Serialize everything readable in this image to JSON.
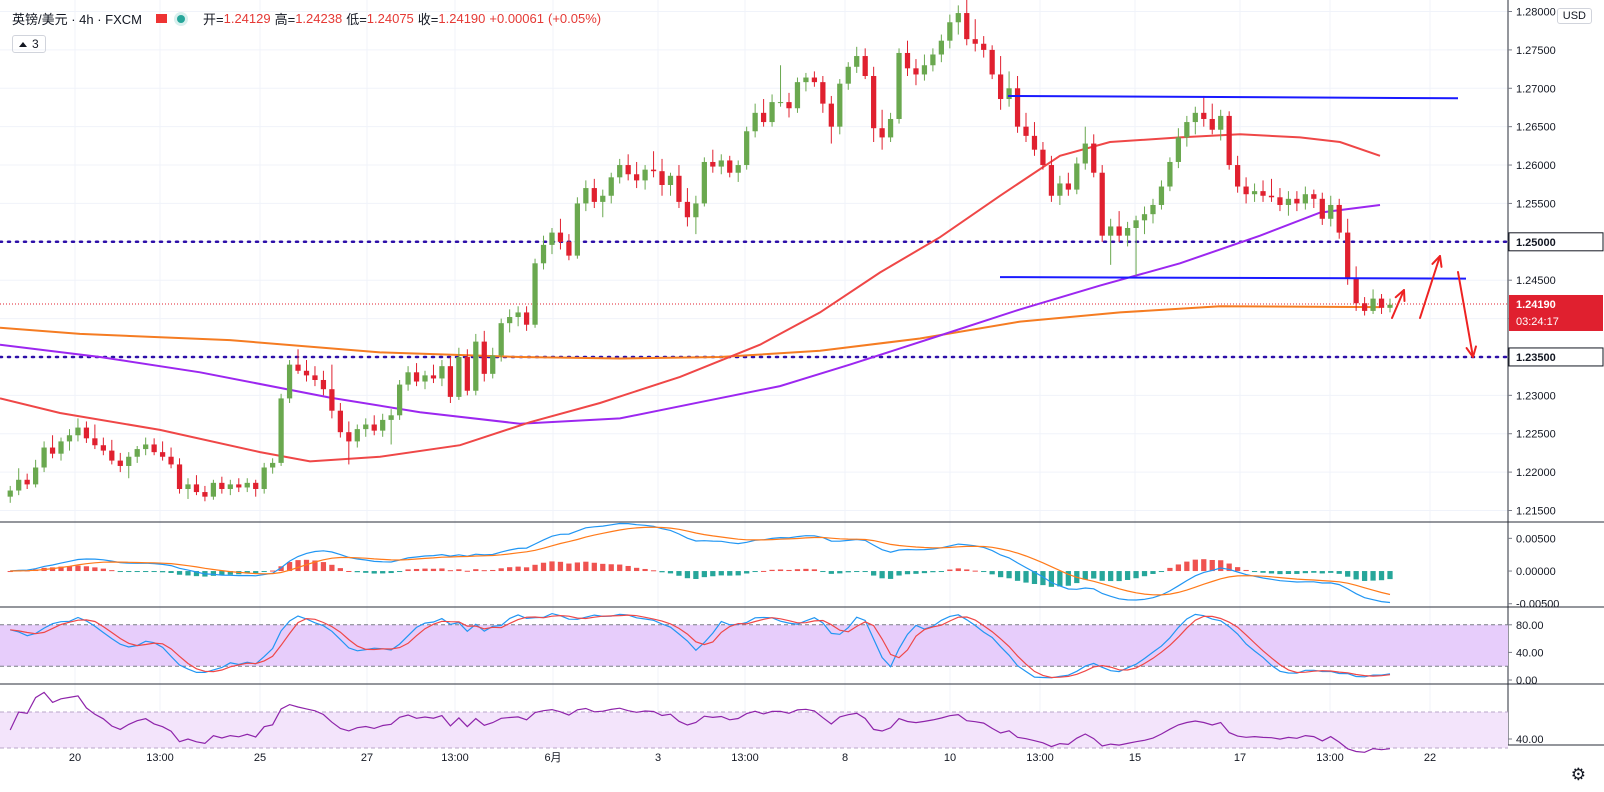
{
  "header": {
    "symbol": "英镑/美元 · 4h · FXCM",
    "open_label": "开=",
    "open_value": "1.24129",
    "high_label": "高=",
    "high_value": "1.24238",
    "low_label": "低=",
    "low_value": "1.24075",
    "close_label": "收=",
    "close_value": "1.24190",
    "change_value": "+0.00061",
    "change_pct": "(+0.05%)"
  },
  "indicator_badge": "3",
  "currency": "USD",
  "current_price_label": "1.24190",
  "countdown": "03:24:17",
  "colors": {
    "up": "#6aa84f",
    "down": "#e0202f",
    "ma_red": "#ef4747",
    "ma_purple": "#9c27f0",
    "ma_orange": "#f57c22",
    "trend_blue": "#1a1aff",
    "level_dotted": "#2d0fa8",
    "arrow_red": "#ee2222",
    "rsi_fill": "#e7cdfb",
    "rsi2_fill": "#f3e4fb",
    "macd_pos": "#ef5350",
    "macd_neg": "#26a69a"
  },
  "chart_data": {
    "type": "candlestick",
    "instrument": "英镑/美元",
    "timeframe": "4h",
    "source": "FXCM",
    "price_axis": {
      "min": 1.2135,
      "max": 1.2815,
      "ticks": [
        "1.28000",
        "1.27500",
        "1.27000",
        "1.26500",
        "1.26000",
        "1.25500",
        "1.25000",
        "1.24500",
        "1.24000",
        "1.23500",
        "1.23000",
        "1.22500",
        "1.22000",
        "1.21500"
      ]
    },
    "x_axis_labels": [
      "20",
      "13:00",
      "25",
      "27",
      "13:00",
      "6月",
      "3",
      "13:00",
      "8",
      "10",
      "13:00",
      "15",
      "17",
      "13:00",
      "22"
    ],
    "horizontal_levels": [
      1.25,
      1.235
    ],
    "level_labels": [
      "1.25000",
      "1.23500"
    ],
    "resistance_line": [
      1.269,
      1.2687
    ],
    "support_line": [
      1.2454,
      1.2452
    ],
    "candles": [
      [
        1.2168,
        1.2182,
        1.216,
        1.2176
      ],
      [
        1.2176,
        1.2205,
        1.217,
        1.219
      ],
      [
        1.219,
        1.2198,
        1.2178,
        1.2184
      ],
      [
        1.2184,
        1.2216,
        1.218,
        1.2206
      ],
      [
        1.2206,
        1.224,
        1.22,
        1.2232
      ],
      [
        1.2232,
        1.2248,
        1.2218,
        1.2224
      ],
      [
        1.2224,
        1.2245,
        1.2215,
        1.224
      ],
      [
        1.224,
        1.2256,
        1.2228,
        1.2248
      ],
      [
        1.2248,
        1.227,
        1.224,
        1.2258
      ],
      [
        1.2258,
        1.2266,
        1.2238,
        1.2244
      ],
      [
        1.2244,
        1.2262,
        1.223,
        1.2235
      ],
      [
        1.2235,
        1.2245,
        1.2222,
        1.2228
      ],
      [
        1.2228,
        1.2242,
        1.221,
        1.2215
      ],
      [
        1.2215,
        1.2225,
        1.22,
        1.2208
      ],
      [
        1.2208,
        1.2226,
        1.2192,
        1.222
      ],
      [
        1.222,
        1.2234,
        1.2212,
        1.223
      ],
      [
        1.223,
        1.2245,
        1.2222,
        1.2236
      ],
      [
        1.2236,
        1.2244,
        1.2222,
        1.2226
      ],
      [
        1.2226,
        1.224,
        1.2215,
        1.222
      ],
      [
        1.222,
        1.2232,
        1.2205,
        1.221
      ],
      [
        1.221,
        1.2218,
        1.2172,
        1.2178
      ],
      [
        1.2178,
        1.2192,
        1.2165,
        1.2184
      ],
      [
        1.2184,
        1.2196,
        1.217,
        1.2174
      ],
      [
        1.2174,
        1.2182,
        1.2162,
        1.2168
      ],
      [
        1.2168,
        1.219,
        1.2164,
        1.2186
      ],
      [
        1.2186,
        1.2194,
        1.2172,
        1.2178
      ],
      [
        1.2178,
        1.219,
        1.217,
        1.2184
      ],
      [
        1.2184,
        1.2192,
        1.2174,
        1.218
      ],
      [
        1.218,
        1.2192,
        1.2174,
        1.2186
      ],
      [
        1.2186,
        1.219,
        1.2168,
        1.2178
      ],
      [
        1.2178,
        1.2212,
        1.2172,
        1.2206
      ],
      [
        1.2206,
        1.2218,
        1.2198,
        1.2212
      ],
      [
        1.2212,
        1.2302,
        1.2208,
        1.2296
      ],
      [
        1.2296,
        1.2346,
        1.229,
        1.234
      ],
      [
        1.234,
        1.236,
        1.2328,
        1.2332
      ],
      [
        1.2332,
        1.2346,
        1.2318,
        1.2326
      ],
      [
        1.2326,
        1.2338,
        1.2312,
        1.232
      ],
      [
        1.232,
        1.2332,
        1.23,
        1.2308
      ],
      [
        1.2308,
        1.234,
        1.227,
        1.228
      ],
      [
        1.228,
        1.229,
        1.2245,
        1.2252
      ],
      [
        1.2252,
        1.2266,
        1.221,
        1.224
      ],
      [
        1.224,
        1.2262,
        1.2232,
        1.2256
      ],
      [
        1.2256,
        1.227,
        1.2246,
        1.2262
      ],
      [
        1.2262,
        1.2274,
        1.2248,
        1.2254
      ],
      [
        1.2254,
        1.2276,
        1.2246,
        1.2268
      ],
      [
        1.2268,
        1.2282,
        1.2236,
        1.2274
      ],
      [
        1.2274,
        1.232,
        1.2268,
        1.2314
      ],
      [
        1.2314,
        1.2338,
        1.2306,
        1.233
      ],
      [
        1.233,
        1.2342,
        1.2312,
        1.2318
      ],
      [
        1.2318,
        1.2332,
        1.2308,
        1.2326
      ],
      [
        1.2326,
        1.234,
        1.2316,
        1.2322
      ],
      [
        1.2322,
        1.2346,
        1.2312,
        1.2338
      ],
      [
        1.2338,
        1.235,
        1.229,
        1.2298
      ],
      [
        1.2298,
        1.2362,
        1.2294,
        1.235
      ],
      [
        1.235,
        1.236,
        1.23,
        1.2306
      ],
      [
        1.2306,
        1.238,
        1.23,
        1.237
      ],
      [
        1.237,
        1.2384,
        1.2318,
        1.2328
      ],
      [
        1.2328,
        1.2362,
        1.2322,
        1.2352
      ],
      [
        1.2352,
        1.24,
        1.2344,
        1.2394
      ],
      [
        1.2394,
        1.2412,
        1.2382,
        1.2402
      ],
      [
        1.2402,
        1.2416,
        1.239,
        1.2408
      ],
      [
        1.2408,
        1.2416,
        1.2384,
        1.2392
      ],
      [
        1.2392,
        1.2478,
        1.2388,
        1.2472
      ],
      [
        1.2472,
        1.2508,
        1.2464,
        1.2496
      ],
      [
        1.2496,
        1.2518,
        1.2484,
        1.2512
      ],
      [
        1.2512,
        1.253,
        1.249,
        1.25
      ],
      [
        1.25,
        1.251,
        1.2476,
        1.2482
      ],
      [
        1.2482,
        1.2558,
        1.2478,
        1.255
      ],
      [
        1.255,
        1.258,
        1.254,
        1.257
      ],
      [
        1.257,
        1.2582,
        1.2544,
        1.2552
      ],
      [
        1.2552,
        1.2568,
        1.2532,
        1.256
      ],
      [
        1.256,
        1.259,
        1.255,
        1.2584
      ],
      [
        1.2584,
        1.2608,
        1.2576,
        1.26
      ],
      [
        1.26,
        1.2614,
        1.258,
        1.2588
      ],
      [
        1.2588,
        1.2604,
        1.257,
        1.258
      ],
      [
        1.258,
        1.26,
        1.2568,
        1.2594
      ],
      [
        1.2594,
        1.2618,
        1.2584,
        1.2592
      ],
      [
        1.2592,
        1.2608,
        1.256,
        1.2574
      ],
      [
        1.2574,
        1.259,
        1.256,
        1.2586
      ],
      [
        1.2586,
        1.26,
        1.2544,
        1.2552
      ],
      [
        1.2552,
        1.257,
        1.252,
        1.2532
      ],
      [
        1.2532,
        1.256,
        1.251,
        1.255
      ],
      [
        1.255,
        1.261,
        1.2546,
        1.2604
      ],
      [
        1.2604,
        1.262,
        1.259,
        1.2598
      ],
      [
        1.2598,
        1.2614,
        1.2588,
        1.2606
      ],
      [
        1.2606,
        1.2612,
        1.2584,
        1.259
      ],
      [
        1.259,
        1.2606,
        1.2578,
        1.26
      ],
      [
        1.26,
        1.265,
        1.2594,
        1.2644
      ],
      [
        1.2644,
        1.268,
        1.2636,
        1.2668
      ],
      [
        1.2668,
        1.2686,
        1.265,
        1.2656
      ],
      [
        1.2656,
        1.2692,
        1.265,
        1.2682
      ],
      [
        1.2682,
        1.273,
        1.2676,
        1.2682
      ],
      [
        1.2682,
        1.2694,
        1.2662,
        1.2674
      ],
      [
        1.2674,
        1.2714,
        1.2668,
        1.2708
      ],
      [
        1.2708,
        1.272,
        1.2696,
        1.2714
      ],
      [
        1.2714,
        1.2722,
        1.2702,
        1.2708
      ],
      [
        1.2708,
        1.2716,
        1.2668,
        1.268
      ],
      [
        1.268,
        1.269,
        1.2628,
        1.265
      ],
      [
        1.265,
        1.2712,
        1.264,
        1.2706
      ],
      [
        1.2706,
        1.2734,
        1.2698,
        1.2728
      ],
      [
        1.2728,
        1.2754,
        1.272,
        1.2742
      ],
      [
        1.2742,
        1.2752,
        1.2712,
        1.2716
      ],
      [
        1.2716,
        1.2728,
        1.263,
        1.2648
      ],
      [
        1.2648,
        1.2672,
        1.262,
        1.2636
      ],
      [
        1.2636,
        1.2668,
        1.263,
        1.266
      ],
      [
        1.266,
        1.2752,
        1.2654,
        1.2746
      ],
      [
        1.2746,
        1.2762,
        1.2716,
        1.2726
      ],
      [
        1.2726,
        1.2738,
        1.2704,
        1.2718
      ],
      [
        1.2718,
        1.2744,
        1.271,
        1.273
      ],
      [
        1.273,
        1.2752,
        1.2722,
        1.2744
      ],
      [
        1.2744,
        1.277,
        1.2734,
        1.2762
      ],
      [
        1.2762,
        1.2796,
        1.2752,
        1.2786
      ],
      [
        1.2786,
        1.2808,
        1.277,
        1.2798
      ],
      [
        1.2798,
        1.2818,
        1.2756,
        1.2764
      ],
      [
        1.2764,
        1.279,
        1.2748,
        1.2758
      ],
      [
        1.2758,
        1.2768,
        1.274,
        1.275
      ],
      [
        1.275,
        1.2756,
        1.2712,
        1.2718
      ],
      [
        1.2718,
        1.2742,
        1.2672,
        1.2686
      ],
      [
        1.2686,
        1.2722,
        1.2676,
        1.27
      ],
      [
        1.27,
        1.2716,
        1.2642,
        1.265
      ],
      [
        1.265,
        1.2668,
        1.263,
        1.2638
      ],
      [
        1.2638,
        1.2656,
        1.2612,
        1.262
      ],
      [
        1.262,
        1.263,
        1.2594,
        1.26
      ],
      [
        1.26,
        1.2612,
        1.2552,
        1.256
      ],
      [
        1.256,
        1.2586,
        1.2548,
        1.2576
      ],
      [
        1.2576,
        1.259,
        1.256,
        1.2568
      ],
      [
        1.2568,
        1.261,
        1.2562,
        1.2602
      ],
      [
        1.2602,
        1.265,
        1.2594,
        1.2628
      ],
      [
        1.2628,
        1.264,
        1.2584,
        1.259
      ],
      [
        1.259,
        1.26,
        1.25,
        1.2508
      ],
      [
        1.2508,
        1.253,
        1.247,
        1.252
      ],
      [
        1.252,
        1.254,
        1.25,
        1.2508
      ],
      [
        1.2508,
        1.2526,
        1.2494,
        1.2518
      ],
      [
        1.2518,
        1.2534,
        1.2456,
        1.2528
      ],
      [
        1.2528,
        1.2546,
        1.251,
        1.2536
      ],
      [
        1.2536,
        1.2556,
        1.2524,
        1.2548
      ],
      [
        1.2548,
        1.258,
        1.2542,
        1.2572
      ],
      [
        1.2572,
        1.261,
        1.2566,
        1.2604
      ],
      [
        1.2604,
        1.2648,
        1.2596,
        1.2636
      ],
      [
        1.2636,
        1.2664,
        1.2624,
        1.2656
      ],
      [
        1.2656,
        1.2676,
        1.264,
        1.2668
      ],
      [
        1.2668,
        1.269,
        1.265,
        1.266
      ],
      [
        1.266,
        1.268,
        1.264,
        1.2646
      ],
      [
        1.2646,
        1.2672,
        1.2632,
        1.2664
      ],
      [
        1.2664,
        1.267,
        1.2594,
        1.26
      ],
      [
        1.26,
        1.2612,
        1.2564,
        1.2572
      ],
      [
        1.2572,
        1.2584,
        1.255,
        1.2562
      ],
      [
        1.2562,
        1.2576,
        1.2552,
        1.2566
      ],
      [
        1.2566,
        1.258,
        1.2552,
        1.256
      ],
      [
        1.256,
        1.2582,
        1.2552,
        1.2558
      ],
      [
        1.2558,
        1.257,
        1.254,
        1.2548
      ],
      [
        1.2548,
        1.2566,
        1.2534,
        1.2556
      ],
      [
        1.2556,
        1.2566,
        1.254,
        1.255
      ],
      [
        1.255,
        1.2572,
        1.2542,
        1.2562
      ],
      [
        1.2562,
        1.2568,
        1.2544,
        1.2556
      ],
      [
        1.2556,
        1.2564,
        1.2522,
        1.253
      ],
      [
        1.253,
        1.256,
        1.252,
        1.2548
      ],
      [
        1.2548,
        1.2556,
        1.2504,
        1.2512
      ],
      [
        1.2512,
        1.253,
        1.2444,
        1.2452
      ],
      [
        1.2452,
        1.2468,
        1.241,
        1.242
      ],
      [
        1.242,
        1.2428,
        1.2404,
        1.241
      ],
      [
        1.241,
        1.2438,
        1.2406,
        1.2426
      ],
      [
        1.2426,
        1.2432,
        1.2406,
        1.2414
      ],
      [
        1.2414,
        1.2426,
        1.2408,
        1.2418
      ]
    ],
    "ma_slow_orange": [
      [
        0,
        1.2388
      ],
      [
        80,
        1.238
      ],
      [
        230,
        1.2372
      ],
      [
        380,
        1.2356
      ],
      [
        520,
        1.235
      ],
      [
        620,
        1.2348
      ],
      [
        720,
        1.235
      ],
      [
        820,
        1.2358
      ],
      [
        920,
        1.2374
      ],
      [
        1020,
        1.2396
      ],
      [
        1120,
        1.2408
      ],
      [
        1220,
        1.2416
      ],
      [
        1380,
        1.2415
      ]
    ],
    "ma_purple": [
      [
        0,
        1.2366
      ],
      [
        100,
        1.235
      ],
      [
        200,
        1.233
      ],
      [
        330,
        1.2297
      ],
      [
        420,
        1.2278
      ],
      [
        520,
        1.2263
      ],
      [
        620,
        1.227
      ],
      [
        700,
        1.2291
      ],
      [
        780,
        1.2312
      ],
      [
        850,
        1.234
      ],
      [
        940,
        1.2378
      ],
      [
        1020,
        1.2412
      ],
      [
        1100,
        1.2443
      ],
      [
        1180,
        1.2472
      ],
      [
        1260,
        1.2508
      ],
      [
        1320,
        1.2538
      ],
      [
        1380,
        1.2548
      ]
    ],
    "ma_red": [
      [
        0,
        1.2296
      ],
      [
        60,
        1.2277
      ],
      [
        160,
        1.2255
      ],
      [
        260,
        1.2226
      ],
      [
        310,
        1.2214
      ],
      [
        380,
        1.222
      ],
      [
        460,
        1.2235
      ],
      [
        530,
        1.2265
      ],
      [
        600,
        1.229
      ],
      [
        680,
        1.2324
      ],
      [
        760,
        1.2366
      ],
      [
        820,
        1.2408
      ],
      [
        880,
        1.246
      ],
      [
        940,
        1.2506
      ],
      [
        1000,
        1.256
      ],
      [
        1060,
        1.2612
      ],
      [
        1110,
        1.263
      ],
      [
        1180,
        1.2636
      ],
      [
        1240,
        1.264
      ],
      [
        1300,
        1.2636
      ],
      [
        1340,
        1.263
      ],
      [
        1380,
        1.2612
      ]
    ],
    "macd_panel": {
      "ticks": [
        "0.00500",
        "0.00000",
        "-0.00500"
      ],
      "range": [
        -0.0055,
        0.0075
      ]
    },
    "stoch_panel": {
      "ticks": [
        "80.00",
        "40.00",
        "0.00"
      ],
      "upper": 80,
      "lower": 20
    },
    "rsi_panel": {
      "ticks": [
        "40.00"
      ],
      "upper": 70,
      "lower": 30
    }
  }
}
